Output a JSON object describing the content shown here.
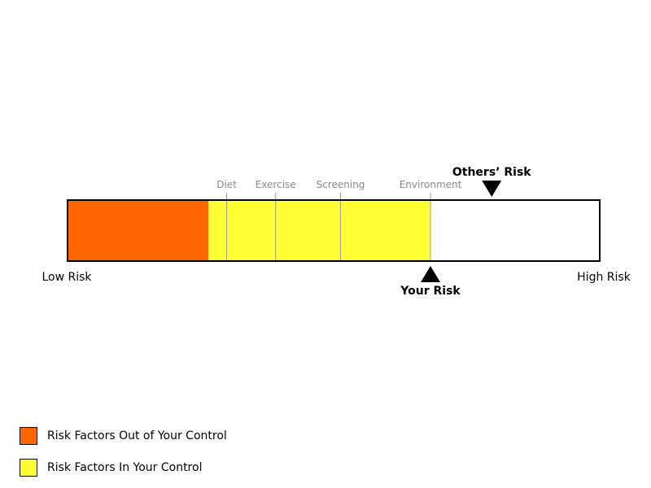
{
  "chart_data": {
    "type": "bar",
    "scale": {
      "min_label": "Low Risk",
      "max_label": "High Risk",
      "range": [
        0,
        100
      ]
    },
    "segments": [
      {
        "name": "Risk Factors Out of Your Control",
        "start": 0,
        "end": 26.5,
        "color": "#ff6600"
      },
      {
        "name": "Risk Factors In Your Control",
        "start": 26.5,
        "end": 68.2,
        "color": "#ffff33"
      }
    ],
    "factor_dividers": [
      {
        "label": "Diet",
        "value": 29.9
      },
      {
        "label": "Exercise",
        "value": 39.1
      },
      {
        "label": "Screening",
        "value": 51.3
      },
      {
        "label": "Environment",
        "value": 68.2
      }
    ],
    "markers": [
      {
        "label": "Your Risk",
        "value": 68.2,
        "side": "below"
      },
      {
        "label": "Others’ Risk",
        "value": 79.7,
        "side": "above"
      }
    ],
    "legend": [
      {
        "label": "Risk Factors Out of Your Control",
        "color": "#ff6600"
      },
      {
        "label": "Risk Factors In Your Control",
        "color": "#ffff33"
      }
    ]
  }
}
